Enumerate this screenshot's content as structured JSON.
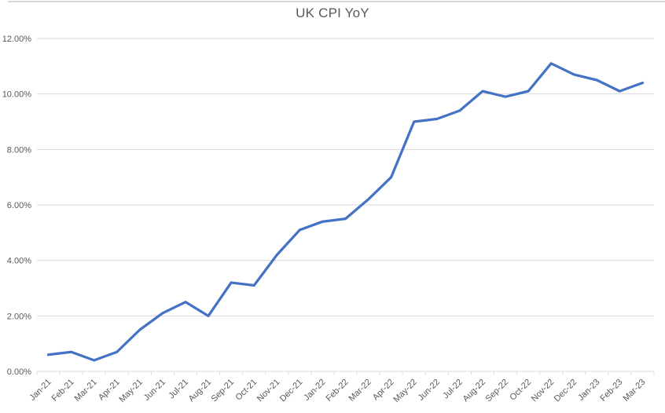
{
  "chart_data": {
    "type": "line",
    "title": "UK CPI YoY",
    "categories": [
      "Jan-21",
      "Feb-21",
      "Mar-21",
      "Apr-21",
      "May-21",
      "Jun-21",
      "Jul-21",
      "Aug-21",
      "Sep-21",
      "Oct-21",
      "Nov-21",
      "Dec-21",
      "Jan-22",
      "Feb-22",
      "Mar-22",
      "Apr-22",
      "May-22",
      "Jun-22",
      "Jul-22",
      "Aug-22",
      "Sep-22",
      "Oct-22",
      "Nov-22",
      "Dec-22",
      "Jan-23",
      "Feb-23",
      "Mar-23"
    ],
    "series": [
      {
        "name": "UK CPI YoY",
        "values": [
          0.6,
          0.7,
          0.4,
          0.7,
          1.5,
          2.1,
          2.5,
          2.0,
          3.2,
          3.1,
          4.2,
          5.1,
          5.4,
          5.5,
          6.2,
          7.0,
          9.0,
          9.1,
          9.4,
          10.1,
          9.9,
          10.1,
          11.1,
          10.7,
          10.5,
          10.1,
          10.4
        ]
      }
    ],
    "values_unit": "percent",
    "xlabel": "",
    "ylabel": "",
    "ylim": [
      0,
      12
    ],
    "yticks": [
      {
        "value": 0,
        "label": "0.00%"
      },
      {
        "value": 2,
        "label": "2.00%"
      },
      {
        "value": 4,
        "label": "4.00%"
      },
      {
        "value": 6,
        "label": "6.00%"
      },
      {
        "value": 8,
        "label": "8.00%"
      },
      {
        "value": 10,
        "label": "10.00%"
      },
      {
        "value": 12,
        "label": "12.00%"
      }
    ],
    "grid": true,
    "legend_position": "none",
    "x_label_rotation_deg": 45,
    "colors": {
      "line": "#4472C4",
      "gridline": "#D9D9D9",
      "axis": "#D9D9D9",
      "tick_label": "#595959",
      "title": "#595959"
    }
  }
}
